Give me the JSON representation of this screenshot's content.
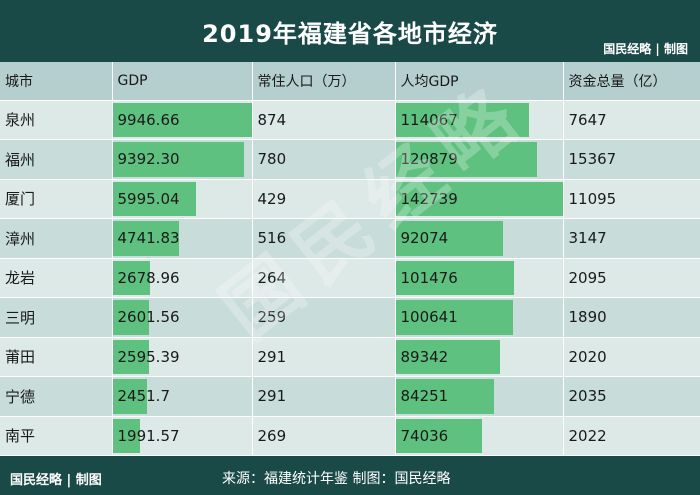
{
  "header": {
    "title": "2019年福建省各地市经济",
    "brand": "国民经略 | 制图"
  },
  "footer": {
    "brand": "国民经略 | 制图",
    "source": "来源：福建统计年鉴  制图：国民经略"
  },
  "watermark": "国民经略",
  "colors": {
    "header_bg": "#1a4a48",
    "bar": "#5fc17f",
    "row_light": "#dde9e7",
    "row_dark": "#c8dcda",
    "column_header_bg": "#b4cfcd"
  },
  "chart_data": {
    "type": "table",
    "columns": [
      "城市",
      "GDP",
      "常住人口（万）",
      "人均GDP",
      "资金总量（亿）"
    ],
    "bar_columns": [
      "GDP",
      "人均GDP"
    ],
    "rows": [
      {
        "city": "泉州",
        "gdp": "9946.66",
        "pop": "874",
        "gdp_per_capita": "114067",
        "funds": "7647"
      },
      {
        "city": "福州",
        "gdp": "9392.30",
        "pop": "780",
        "gdp_per_capita": "120879",
        "funds": "15367"
      },
      {
        "city": "厦门",
        "gdp": "5995.04",
        "pop": "429",
        "gdp_per_capita": "142739",
        "funds": "11095"
      },
      {
        "city": "漳州",
        "gdp": "4741.83",
        "pop": "516",
        "gdp_per_capita": "92074",
        "funds": "3147"
      },
      {
        "city": "龙岩",
        "gdp": "2678.96",
        "pop": "264",
        "gdp_per_capita": "101476",
        "funds": "2095"
      },
      {
        "city": "三明",
        "gdp": "2601.56",
        "pop": "259",
        "gdp_per_capita": "100641",
        "funds": "1890"
      },
      {
        "city": "莆田",
        "gdp": "2595.39",
        "pop": "291",
        "gdp_per_capita": "89342",
        "funds": "2020"
      },
      {
        "city": "宁德",
        "gdp": "2451.7",
        "pop": "291",
        "gdp_per_capita": "84251",
        "funds": "2035"
      },
      {
        "city": "南平",
        "gdp": "1991.57",
        "pop": "269",
        "gdp_per_capita": "74036",
        "funds": "2022"
      }
    ]
  }
}
